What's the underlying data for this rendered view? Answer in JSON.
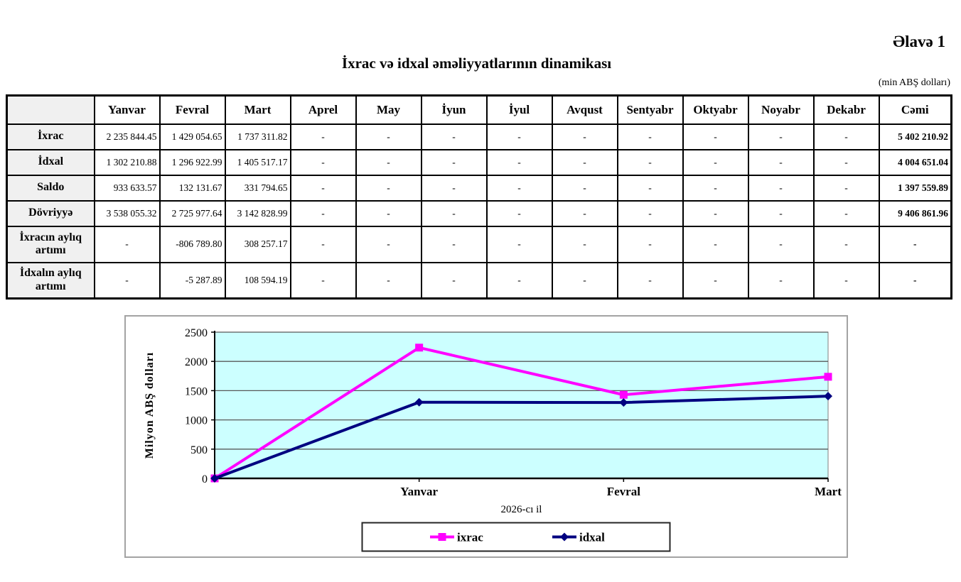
{
  "page": {
    "appendix": "Əlavə 1",
    "title": "İxrac və idxal əməliyyatlarının dinamikası",
    "unit_note": "(min ABŞ dolları)"
  },
  "table": {
    "columns": [
      "",
      "Yanvar",
      "Fevral",
      "Mart",
      "Aprel",
      "May",
      "İyun",
      "İyul",
      "Avqust",
      "Sentyabr",
      "Oktyabr",
      "Noyabr",
      "Dekabr",
      "Cəmi"
    ],
    "rows": [
      {
        "label": "İxrac",
        "values": [
          "2 235 844.45",
          "1 429 054.65",
          "1 737 311.82",
          "-",
          "-",
          "-",
          "-",
          "-",
          "-",
          "-",
          "-",
          "-"
        ],
        "total": "5 402 210.92"
      },
      {
        "label": "İdxal",
        "values": [
          "1 302 210.88",
          "1 296 922.99",
          "1 405 517.17",
          "-",
          "-",
          "-",
          "-",
          "-",
          "-",
          "-",
          "-",
          "-"
        ],
        "total": "4 004 651.04"
      },
      {
        "label": "Saldo",
        "values": [
          "933 633.57",
          "132 131.67",
          "331 794.65",
          "-",
          "-",
          "-",
          "-",
          "-",
          "-",
          "-",
          "-",
          "-"
        ],
        "total": "1 397 559.89"
      },
      {
        "label": "Dövriyyə",
        "values": [
          "3 538 055.32",
          "2 725 977.64",
          "3 142 828.99",
          "-",
          "-",
          "-",
          "-",
          "-",
          "-",
          "-",
          "-",
          "-"
        ],
        "total": "9 406 861.96"
      },
      {
        "label": "İxracın aylıq artımı",
        "values": [
          "-",
          "-806 789.80",
          "308 257.17",
          "-",
          "-",
          "-",
          "-",
          "-",
          "-",
          "-",
          "-",
          "-"
        ],
        "total": "-"
      },
      {
        "label": "İdxalın aylıq artımı",
        "values": [
          "-",
          "-5 287.89",
          "108 594.19",
          "-",
          "-",
          "-",
          "-",
          "-",
          "-",
          "-",
          "-",
          "-"
        ],
        "total": "-"
      }
    ]
  },
  "chart_data": {
    "type": "line",
    "categories": [
      "",
      "Yanvar",
      "Fevral",
      "Mart"
    ],
    "series": [
      {
        "name": "ixrac",
        "color": "#FF00FF",
        "marker": "square",
        "values": [
          0,
          2235.84,
          1429.05,
          1737.31
        ]
      },
      {
        "name": "idxal",
        "color": "#000080",
        "marker": "diamond",
        "values": [
          0,
          1302.21,
          1296.92,
          1405.52
        ]
      }
    ],
    "title": "",
    "xlabel": "2026-cı il",
    "ylabel": "Milyon ABŞ dolları",
    "ylim": [
      0,
      2500
    ],
    "yticks": [
      0,
      500,
      1000,
      1500,
      2000,
      2500
    ],
    "plot_bg": "#CCFFFF",
    "grid": true,
    "legend_position": "bottom",
    "gridline_color": "#595959"
  }
}
